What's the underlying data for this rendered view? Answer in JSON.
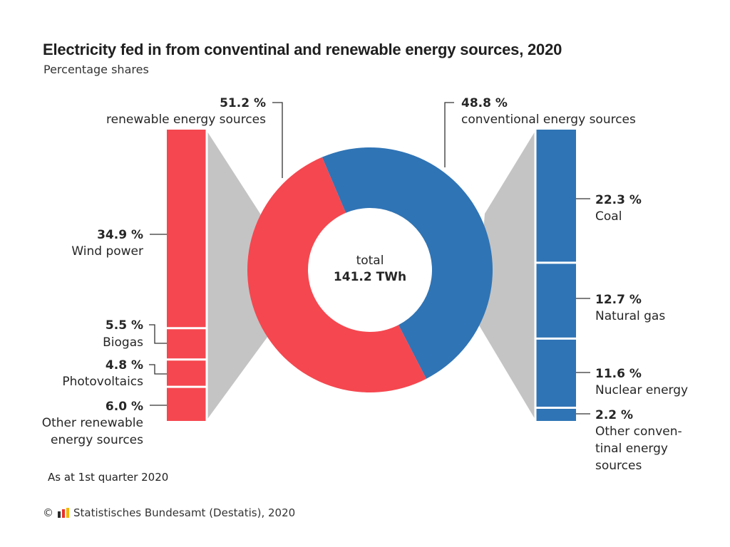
{
  "header": {
    "title": "Electricity fed in from conventinal and renewable energy sources, 2020",
    "subtitle": "Percentage shares"
  },
  "chart_data": {
    "type": "pie",
    "variant": "donut with breakdown bars",
    "center_label": "total",
    "center_value": "141.2 TWh",
    "slices": [
      {
        "key": "renewable",
        "value": 51.2,
        "value_label": "51.2 %",
        "label": "renewable energy sources",
        "color": "#f5474f"
      },
      {
        "key": "conventional",
        "value": 48.8,
        "value_label": "48.8 %",
        "label": "conventional energy sources",
        "color": "#2f74b5"
      }
    ],
    "breakdowns": [
      {
        "parent": "renewable",
        "side": "left",
        "color": "#f5474f",
        "segments": [
          {
            "value": 34.9,
            "value_label": "34.9 %",
            "label_lines": [
              "Wind power"
            ]
          },
          {
            "value": 5.5,
            "value_label": "5.5 %",
            "label_lines": [
              "Biogas"
            ]
          },
          {
            "value": 4.8,
            "value_label": "4.8 %",
            "label_lines": [
              "Photovoltaics"
            ]
          },
          {
            "value": 6.0,
            "value_label": "6.0 %",
            "label_lines": [
              "Other renewable",
              "energy sources"
            ]
          }
        ]
      },
      {
        "parent": "conventional",
        "side": "right",
        "color": "#2f74b5",
        "segments": [
          {
            "value": 22.3,
            "value_label": "22.3 %",
            "label_lines": [
              "Coal"
            ]
          },
          {
            "value": 12.7,
            "value_label": "12.7 %",
            "label_lines": [
              "Natural gas"
            ]
          },
          {
            "value": 11.6,
            "value_label": "11.6 %",
            "label_lines": [
              "Nuclear energy"
            ]
          },
          {
            "value": 2.2,
            "value_label": "2.2 %",
            "label_lines": [
              "Other conven-",
              "tinal energy",
              "sources"
            ]
          }
        ]
      }
    ],
    "connector_color": "#c4c4c4"
  },
  "note": "As at 1st quarter 2020",
  "footer": {
    "copyright": "©",
    "source": "Statistisches Bundesamt (Destatis), 2020",
    "logo_colors": [
      "#2b2b2b",
      "#e8322b",
      "#f5b800"
    ]
  }
}
